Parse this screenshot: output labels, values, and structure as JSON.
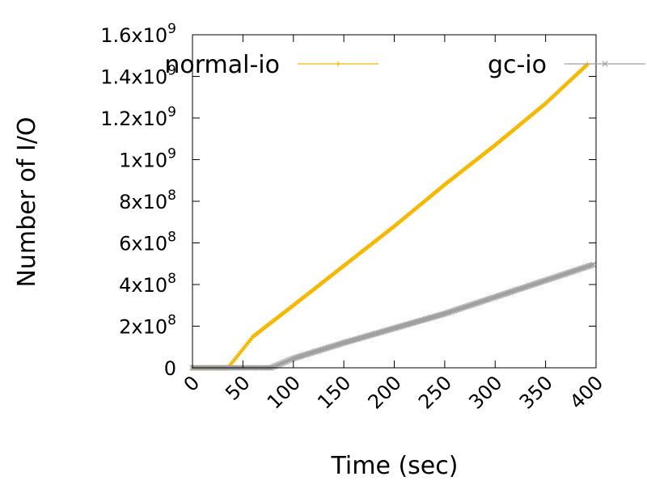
{
  "chart_data": {
    "type": "line",
    "title": "",
    "xlabel": "Time (sec)",
    "ylabel": "Number of I/O",
    "xlim": [
      0,
      400
    ],
    "ylim": [
      0,
      1600000000
    ],
    "grid": false,
    "legend_position": "top",
    "x_ticks": [
      "0",
      "50",
      "100",
      "150",
      "200",
      "250",
      "300",
      "350",
      "400"
    ],
    "y_ticks": [
      {
        "value": 0,
        "mantissa": "0",
        "exponent": ""
      },
      {
        "value": 200000000,
        "mantissa": "2x10",
        "exponent": "8"
      },
      {
        "value": 400000000,
        "mantissa": "4x10",
        "exponent": "8"
      },
      {
        "value": 600000000,
        "mantissa": "6x10",
        "exponent": "8"
      },
      {
        "value": 800000000,
        "mantissa": "8x10",
        "exponent": "8"
      },
      {
        "value": 1000000000,
        "mantissa": "1x10",
        "exponent": "9"
      },
      {
        "value": 1200000000,
        "mantissa": "1.2x10",
        "exponent": "9"
      },
      {
        "value": 1400000000,
        "mantissa": "1.4x10",
        "exponent": "9"
      },
      {
        "value": 1600000000,
        "mantissa": "1.6x10",
        "exponent": "9"
      }
    ],
    "series": [
      {
        "name": "normal-io",
        "color": "#f5b800",
        "marker": "plus",
        "points": [
          [
            0,
            0
          ],
          [
            35,
            0
          ],
          [
            36,
            5000000
          ],
          [
            60,
            150000000
          ],
          [
            100,
            300000000
          ],
          [
            150,
            490000000
          ],
          [
            200,
            680000000
          ],
          [
            250,
            880000000
          ],
          [
            300,
            1070000000
          ],
          [
            350,
            1270000000
          ],
          [
            392,
            1460000000
          ]
        ]
      },
      {
        "name": "gc-io",
        "color": "#a0a0a0",
        "marker": "cross",
        "points": [
          [
            0,
            0
          ],
          [
            78,
            0
          ],
          [
            100,
            45000000
          ],
          [
            150,
            120000000
          ],
          [
            200,
            190000000
          ],
          [
            250,
            260000000
          ],
          [
            300,
            340000000
          ],
          [
            350,
            420000000
          ],
          [
            398,
            497000000
          ]
        ]
      }
    ]
  }
}
